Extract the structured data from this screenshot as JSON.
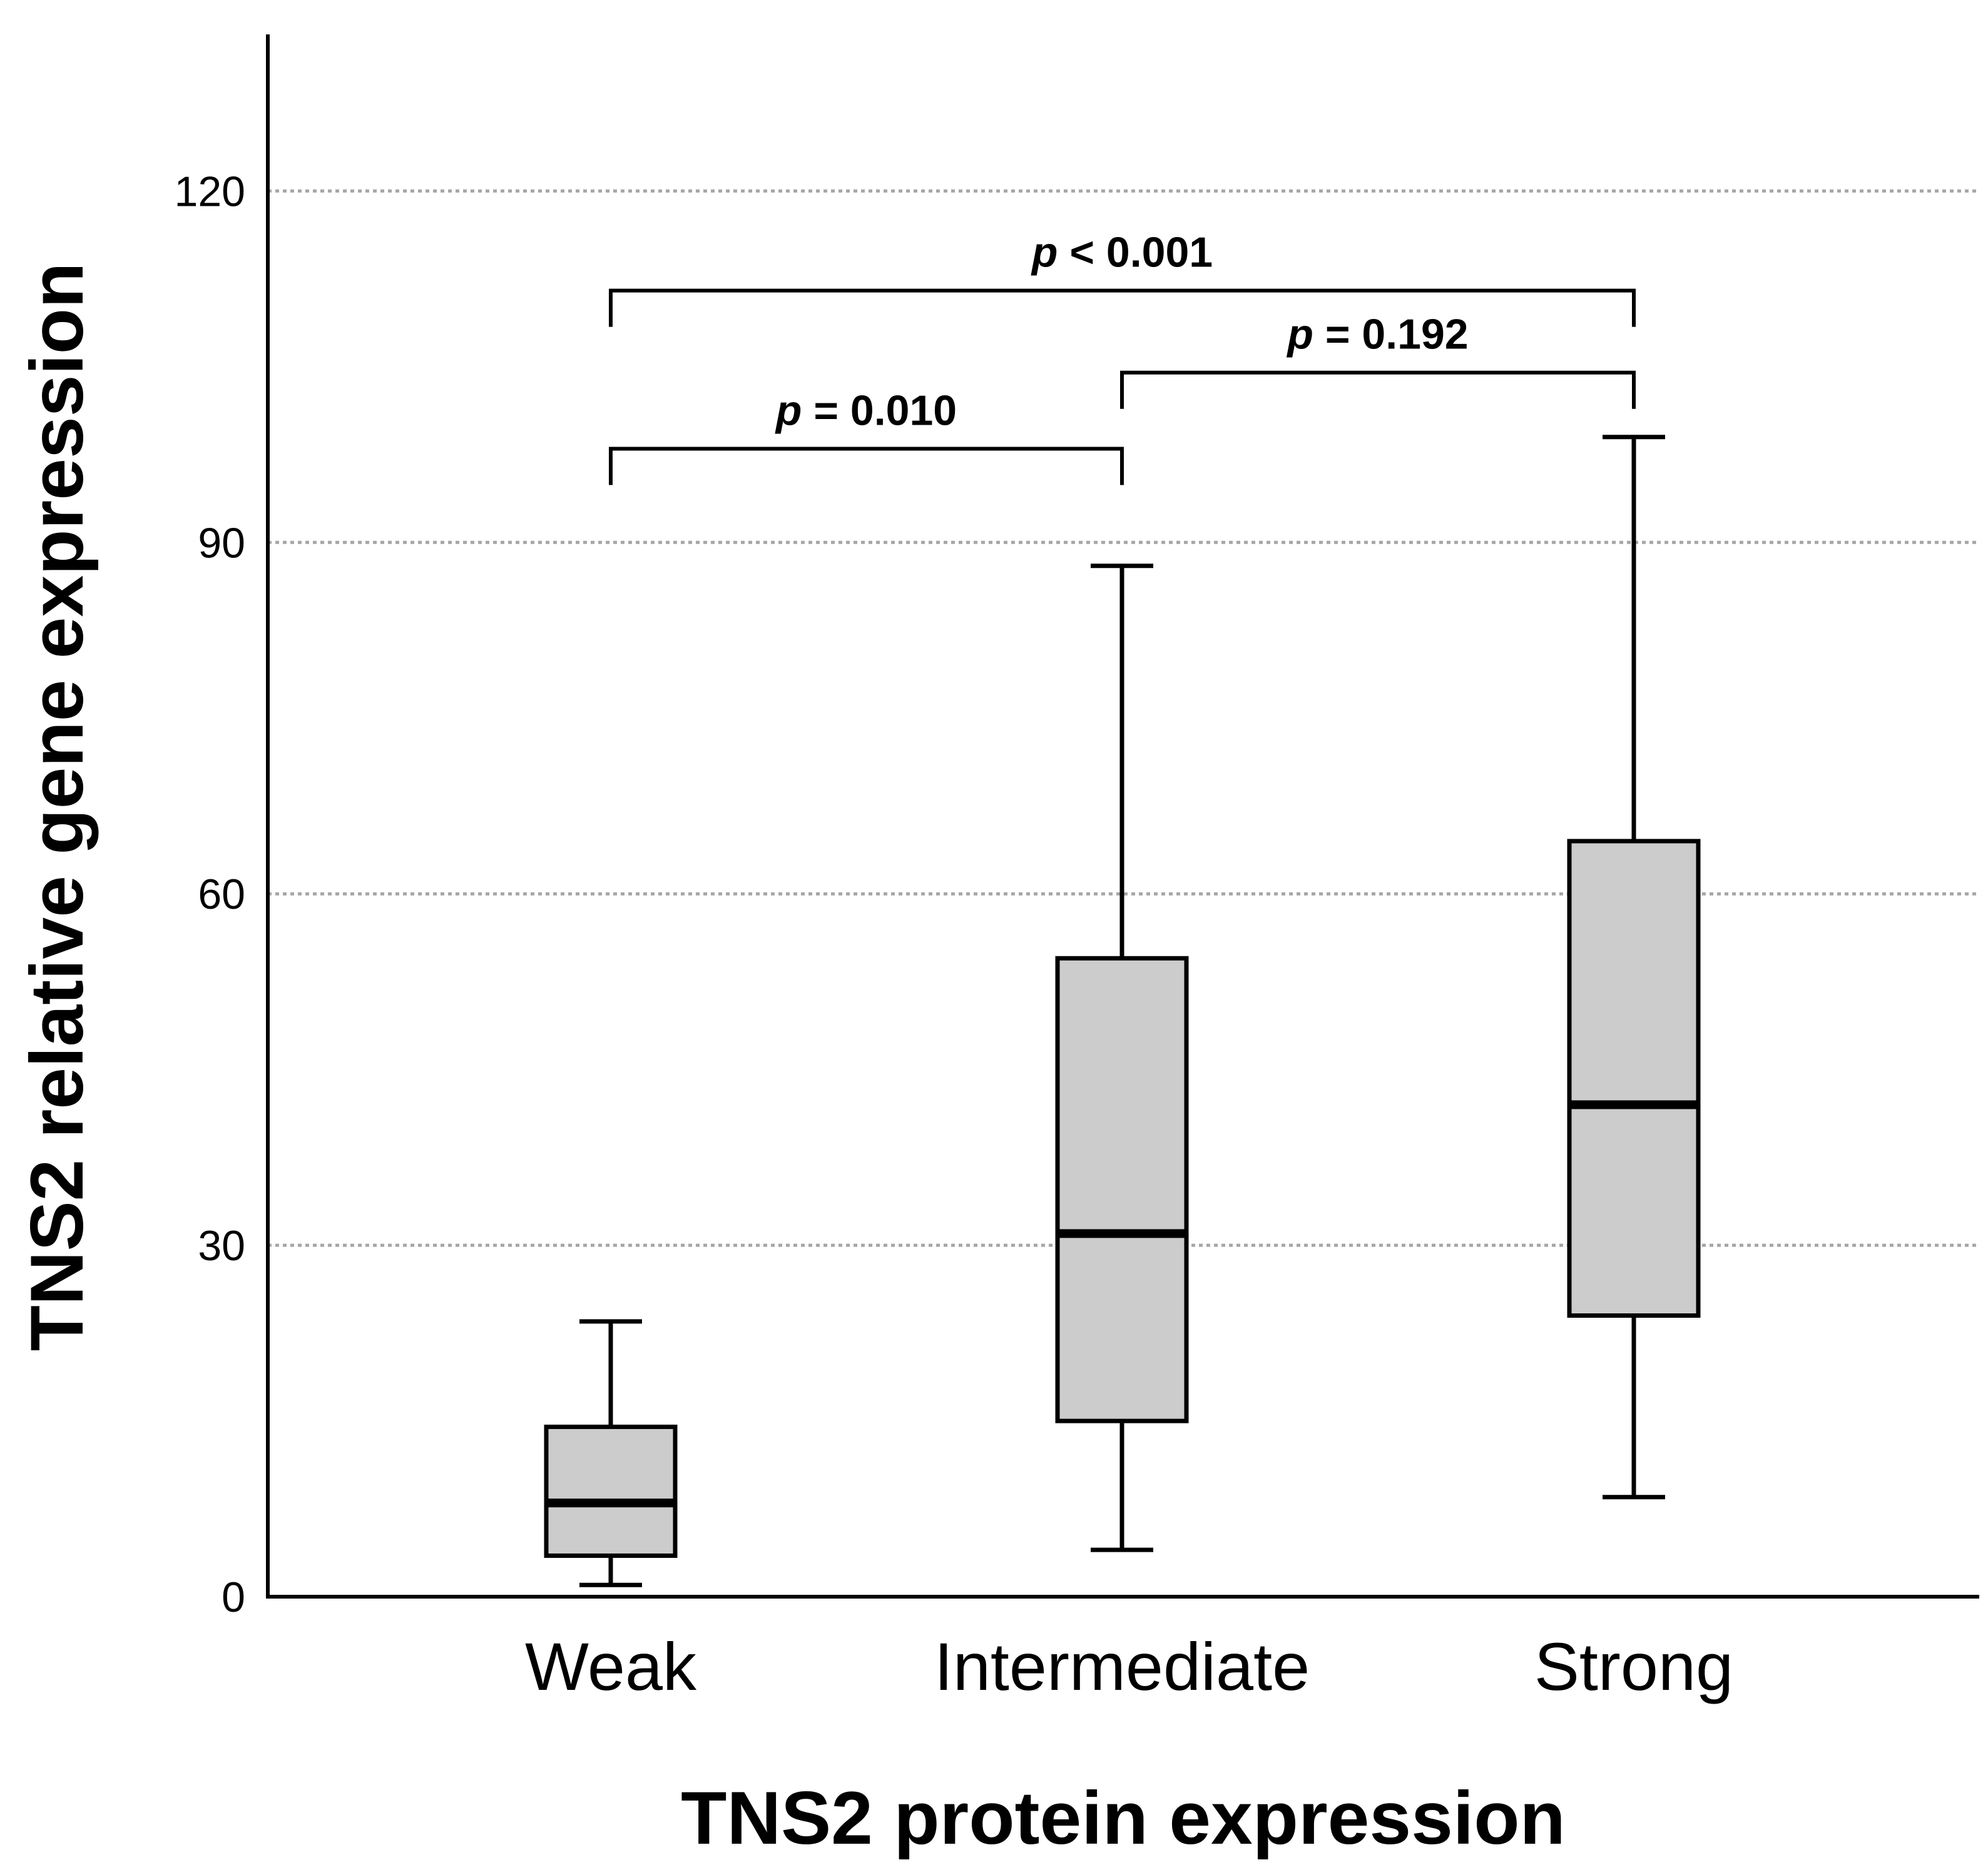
{
  "chart_data": {
    "type": "box",
    "title": "",
    "xlabel": "TNS2 protein expression",
    "ylabel": "TNS2 relative gene expression",
    "ylim": [
      0,
      133
    ],
    "yticks": [
      0,
      30,
      60,
      90,
      120
    ],
    "grid": true,
    "categories": [
      "Weak",
      "Intermediate",
      "Strong"
    ],
    "boxes": [
      {
        "category": "Weak",
        "min": 1,
        "q1": 3.5,
        "median": 8,
        "q3": 14.5,
        "max": 23.5
      },
      {
        "category": "Intermediate",
        "min": 4,
        "q1": 15,
        "median": 31,
        "q3": 54.5,
        "max": 88
      },
      {
        "category": "Strong",
        "min": 8.5,
        "q1": 24,
        "median": 42,
        "q3": 64.5,
        "max": 99
      }
    ],
    "comparisons": [
      {
        "from": 0,
        "to": 1,
        "y": 98,
        "p_symbol": "p",
        "p_text": " = 0.010"
      },
      {
        "from": 1,
        "to": 2,
        "y": 104.5,
        "p_symbol": "p",
        "p_text": " = 0.192"
      },
      {
        "from": 0,
        "to": 2,
        "y": 111.5,
        "p_symbol": "p",
        "p_text": " < 0.001"
      }
    ]
  }
}
